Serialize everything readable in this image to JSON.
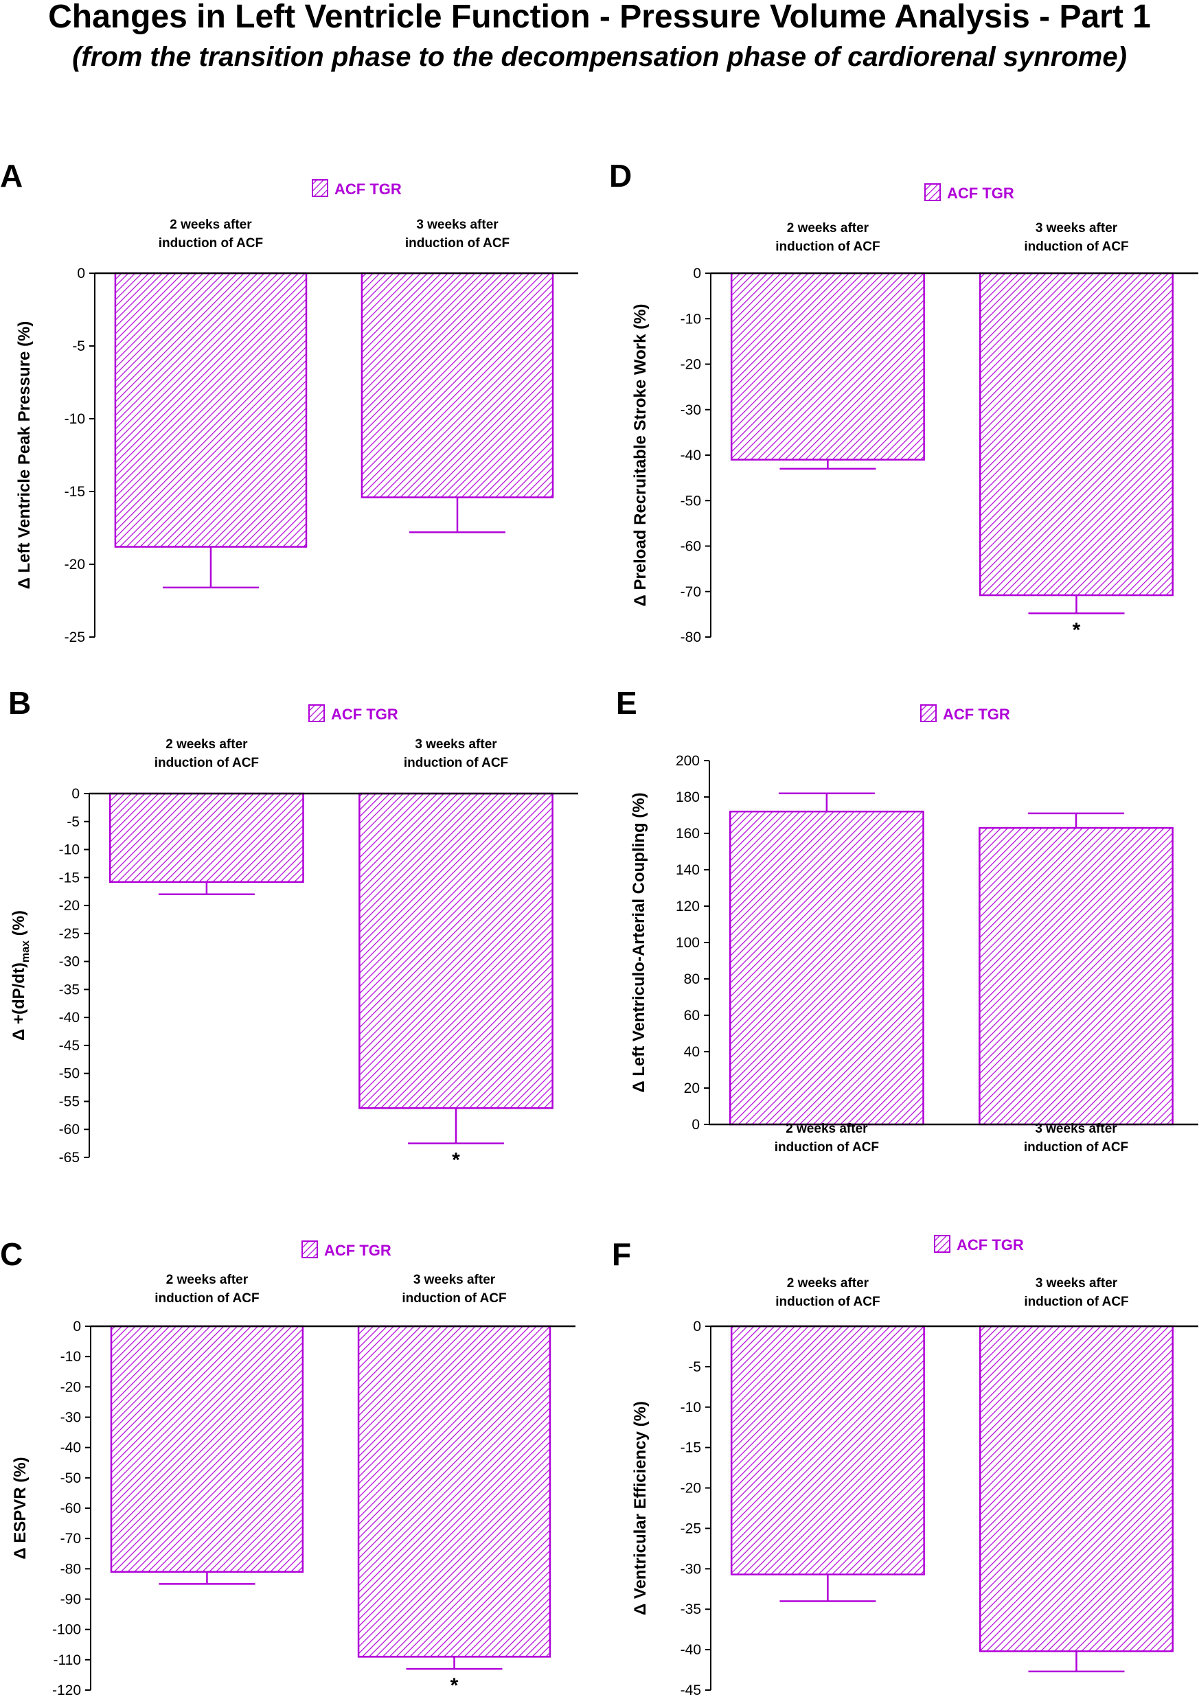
{
  "title": "Changes in Left Ventricle Function - Pressure Volume Analysis - Part 1",
  "subtitle": "(from the transition phase to the decompensation phase of cardiorenal synrome)",
  "colors": {
    "bar": "#b000d8",
    "axis": "#000000"
  },
  "chart_data": [
    {
      "panel": "A",
      "type": "bar",
      "legend": "ACF TGR",
      "categories": [
        "2 weeks after\ninduction of ACF",
        "3 weeks after\ninduction of ACF"
      ],
      "values": [
        -18.8,
        -15.4
      ],
      "errors": [
        2.8,
        2.4
      ],
      "significance": [
        "",
        ""
      ],
      "ylabel": "Δ Left Ventricle Peak Pressure (%)",
      "ylim": [
        -25,
        0
      ],
      "yticks": [
        0,
        -5,
        -10,
        -15,
        -20,
        -25
      ],
      "category_position": "top"
    },
    {
      "panel": "B",
      "type": "bar",
      "legend": "ACF TGR",
      "categories": [
        "2 weeks after\ninduction of ACF",
        "3 weeks after\ninduction of ACF"
      ],
      "values": [
        -15.8,
        -56.2
      ],
      "errors": [
        2.2,
        6.3
      ],
      "significance": [
        "",
        "*"
      ],
      "ylabel": "Δ +(dP/dt)max (%)",
      "ylim": [
        -65,
        0
      ],
      "yticks": [
        0,
        -5,
        -10,
        -15,
        -20,
        -25,
        -30,
        -35,
        -40,
        -45,
        -50,
        -55,
        -60,
        -65
      ],
      "category_position": "top"
    },
    {
      "panel": "C",
      "type": "bar",
      "legend": "ACF TGR",
      "categories": [
        "2 weeks after\ninduction of ACF",
        "3 weeks after\ninduction of ACF"
      ],
      "values": [
        -81,
        -109
      ],
      "errors": [
        4,
        4
      ],
      "significance": [
        "",
        "*"
      ],
      "ylabel": "Δ ESPVR (%)",
      "ylim": [
        -120,
        0
      ],
      "yticks": [
        0,
        -10,
        -20,
        -30,
        -40,
        -50,
        -60,
        -70,
        -80,
        -90,
        -100,
        -110,
        -120
      ],
      "category_position": "top"
    },
    {
      "panel": "D",
      "type": "bar",
      "legend": "ACF TGR",
      "categories": [
        "2 weeks after\ninduction of ACF",
        "3 weeks after\ninduction of ACF"
      ],
      "values": [
        -41,
        -70.8
      ],
      "errors": [
        2,
        4
      ],
      "significance": [
        "",
        "*"
      ],
      "ylabel": "Δ Preload Recruitable Stroke Work (%)",
      "ylim": [
        -80,
        0
      ],
      "yticks": [
        0,
        -10,
        -20,
        -30,
        -40,
        -50,
        -60,
        -70,
        -80
      ],
      "category_position": "top"
    },
    {
      "panel": "E",
      "type": "bar",
      "legend": "ACF TGR",
      "categories": [
        "2 weeks after\ninduction of ACF",
        "3 weeks after\ninduction of ACF"
      ],
      "values": [
        172,
        163
      ],
      "errors": [
        10,
        8
      ],
      "significance": [
        "",
        ""
      ],
      "ylabel": "Δ Left Ventriculo-Arterial Coupling (%)",
      "ylim": [
        0,
        200
      ],
      "yticks": [
        0,
        20,
        40,
        60,
        80,
        100,
        120,
        140,
        160,
        180,
        200
      ],
      "category_position": "bottom"
    },
    {
      "panel": "F",
      "type": "bar",
      "legend": "ACF TGR",
      "categories": [
        "2 weeks after\ninduction of ACF",
        "3 weeks after\ninduction of ACF"
      ],
      "values": [
        -30.7,
        -40.2
      ],
      "errors": [
        3.3,
        2.5
      ],
      "significance": [
        "",
        ""
      ],
      "ylabel": "Δ Ventricular Efficiency (%)",
      "ylim": [
        -45,
        0
      ],
      "yticks": [
        0,
        -5,
        -10,
        -15,
        -20,
        -25,
        -30,
        -35,
        -40,
        -45
      ],
      "category_position": "top"
    }
  ]
}
